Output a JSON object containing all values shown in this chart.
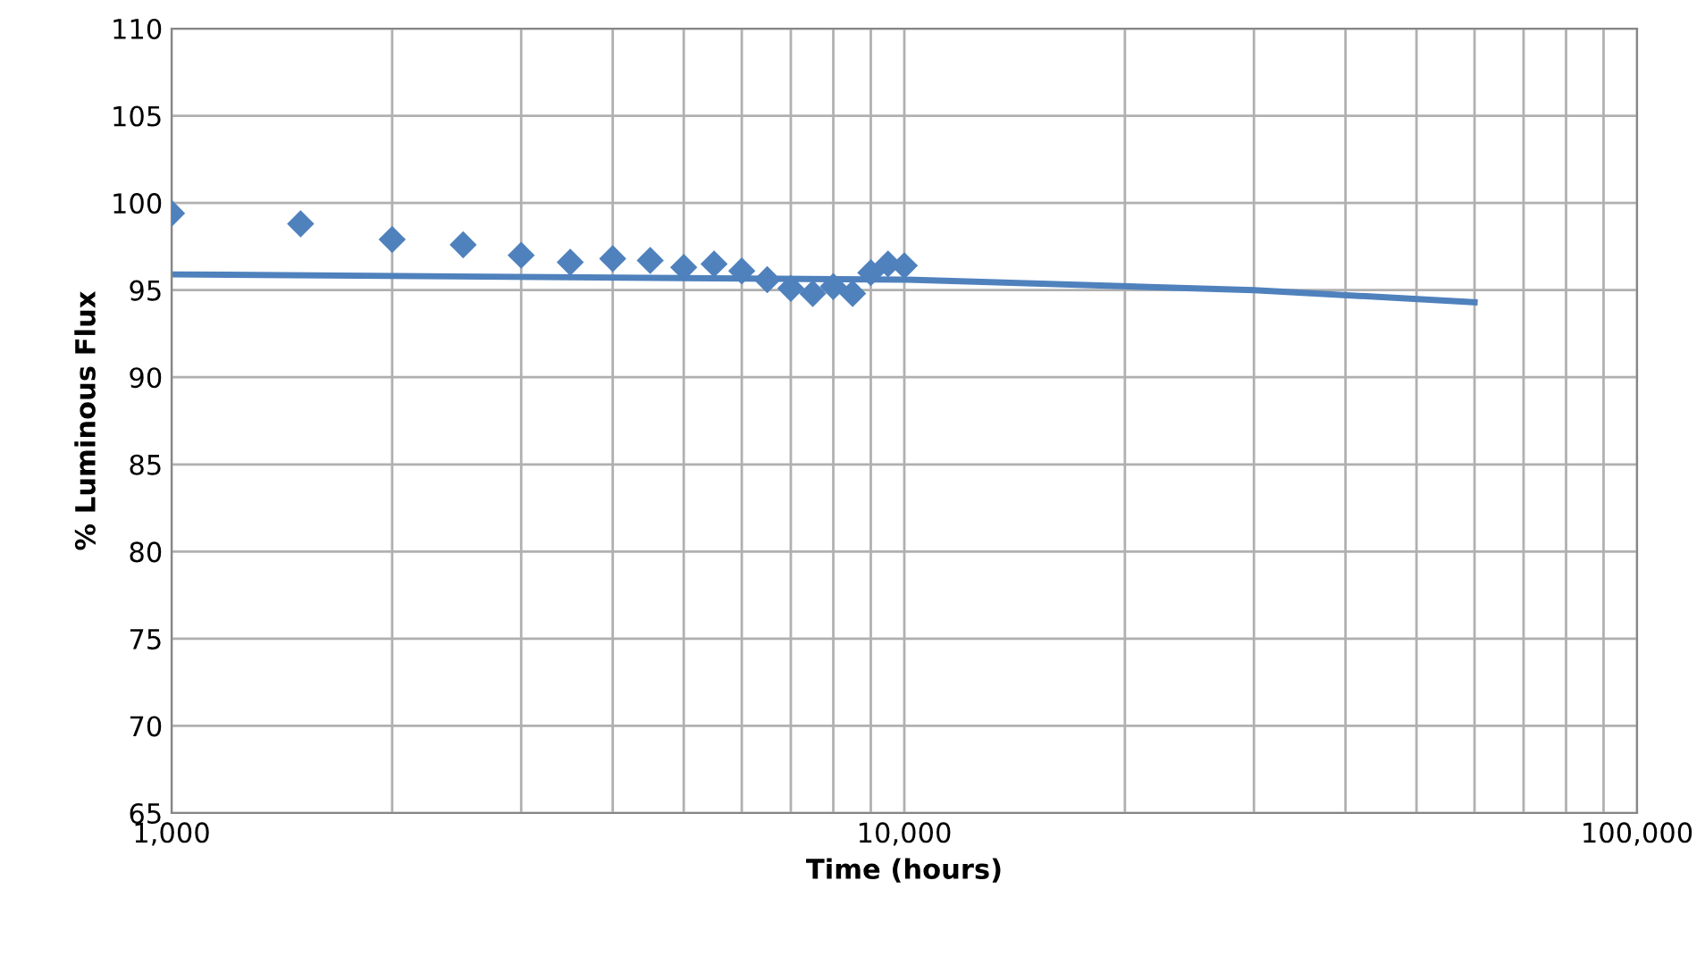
{
  "chart_data": {
    "type": "scatter",
    "xlabel": "Time (hours)",
    "ylabel": "% Luminous Flux",
    "log": "x",
    "xlim": [
      1000,
      100000
    ],
    "ylim": [
      65,
      110
    ],
    "xticks": [
      {
        "value": 1000,
        "label": "1,000"
      },
      {
        "value": 2000,
        "label": null
      },
      {
        "value": 3000,
        "label": null
      },
      {
        "value": 4000,
        "label": null
      },
      {
        "value": 5000,
        "label": null
      },
      {
        "value": 6000,
        "label": null
      },
      {
        "value": 7000,
        "label": null
      },
      {
        "value": 8000,
        "label": null
      },
      {
        "value": 9000,
        "label": null
      },
      {
        "value": 10000,
        "label": "10,000"
      },
      {
        "value": 20000,
        "label": null
      },
      {
        "value": 30000,
        "label": null
      },
      {
        "value": 40000,
        "label": null
      },
      {
        "value": 50000,
        "label": null
      },
      {
        "value": 60000,
        "label": null
      },
      {
        "value": 70000,
        "label": null
      },
      {
        "value": 80000,
        "label": null
      },
      {
        "value": 90000,
        "label": null
      },
      {
        "value": 100000,
        "label": "100,000"
      }
    ],
    "yticks": [
      65,
      70,
      75,
      80,
      85,
      90,
      95,
      100,
      105,
      110
    ],
    "grid": true,
    "series": [
      {
        "marker": "diamond",
        "color": "#4f81bd",
        "x": [
          1000,
          1500,
          2000,
          2500,
          3000,
          3500,
          4000,
          4500,
          5000,
          5500,
          6000,
          6500,
          7000,
          7500,
          8000,
          8500,
          9000,
          9500,
          10000
        ],
        "values": [
          99.4,
          98.8,
          97.9,
          97.6,
          97.0,
          96.6,
          96.8,
          96.7,
          96.3,
          96.5,
          96.1,
          95.6,
          95.1,
          94.8,
          95.2,
          94.8,
          96.0,
          96.5,
          96.4
        ]
      },
      {
        "type": "line",
        "marker": "none",
        "line_style": "solid",
        "color": "#4f81bd",
        "x": [
          1000,
          10000,
          30000,
          60000
        ],
        "values": [
          95.9,
          95.6,
          95.0,
          94.3
        ]
      }
    ]
  }
}
